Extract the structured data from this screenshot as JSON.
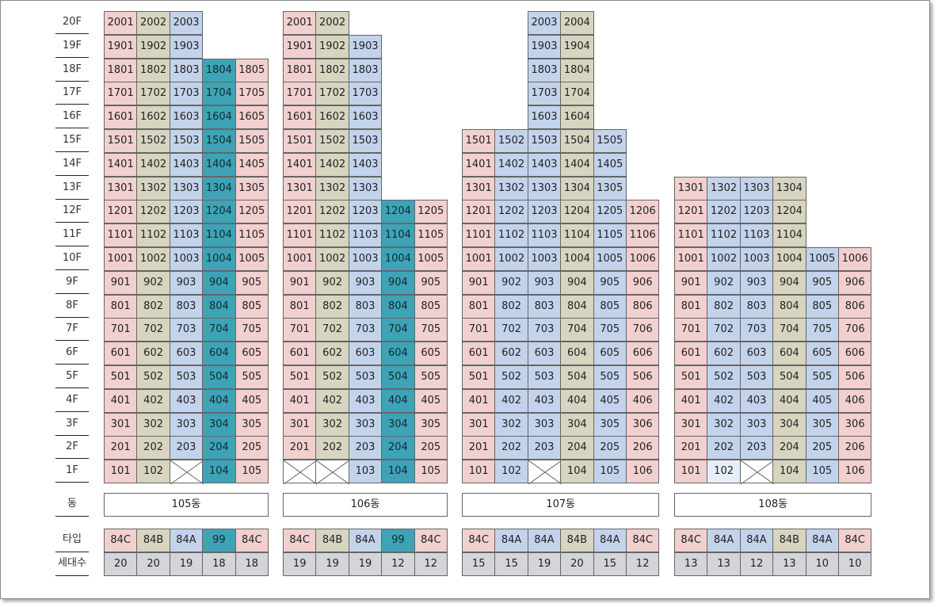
{
  "floor_labels": [
    "20F",
    "19F",
    "18F",
    "17F",
    "16F",
    "15F",
    "14F",
    "13F",
    "12F",
    "11F",
    "10F",
    "9F",
    "8F",
    "7F",
    "6F",
    "5F",
    "4F",
    "3F",
    "2F",
    "1F"
  ],
  "row_labels": {
    "dong": "동",
    "type": "타입",
    "households": "세대수"
  },
  "colors": {
    "84C": "#f2d0d0",
    "84B": "#d7d5c0",
    "84A": "#c4d3ec",
    "99": "#3ea3b6"
  },
  "buildings": [
    {
      "name": "105동",
      "columns": [
        {
          "type": "84C",
          "households": "20",
          "top_floor": 20,
          "empty_floors": []
        },
        {
          "type": "84B",
          "households": "20",
          "top_floor": 20,
          "empty_floors": []
        },
        {
          "type": "84A",
          "households": "19",
          "top_floor": 20,
          "empty_floors": [
            1
          ]
        },
        {
          "type": "99",
          "households": "18",
          "top_floor": 18,
          "empty_floors": []
        },
        {
          "type": "84C",
          "households": "18",
          "top_floor": 18,
          "empty_floors": []
        }
      ]
    },
    {
      "name": "106동",
      "columns": [
        {
          "type": "84C",
          "households": "19",
          "top_floor": 20,
          "empty_floors": [
            1
          ]
        },
        {
          "type": "84B",
          "households": "19",
          "top_floor": 20,
          "empty_floors": [
            1
          ]
        },
        {
          "type": "84A",
          "households": "19",
          "top_floor": 19,
          "empty_floors": []
        },
        {
          "type": "99",
          "households": "12",
          "top_floor": 12,
          "empty_floors": []
        },
        {
          "type": "84C",
          "households": "12",
          "top_floor": 12,
          "empty_floors": []
        }
      ]
    },
    {
      "name": "107동",
      "columns": [
        {
          "type": "84C",
          "households": "15",
          "top_floor": 15,
          "empty_floors": []
        },
        {
          "type": "84A",
          "households": "15",
          "top_floor": 15,
          "empty_floors": []
        },
        {
          "type": "84A",
          "households": "19",
          "top_floor": 20,
          "empty_floors": [
            1
          ]
        },
        {
          "type": "84B",
          "households": "20",
          "top_floor": 20,
          "empty_floors": []
        },
        {
          "type": "84A",
          "households": "15",
          "top_floor": 15,
          "empty_floors": []
        },
        {
          "type": "84C",
          "households": "12",
          "top_floor": 12,
          "empty_floors": []
        }
      ]
    },
    {
      "name": "108동",
      "columns": [
        {
          "type": "84C",
          "households": "13",
          "top_floor": 13,
          "empty_floors": []
        },
        {
          "type": "84A",
          "households": "13",
          "top_floor": 13,
          "empty_floors": [],
          "light_floors": [
            1
          ]
        },
        {
          "type": "84A",
          "households": "12",
          "top_floor": 13,
          "empty_floors": [
            1
          ]
        },
        {
          "type": "84B",
          "households": "13",
          "top_floor": 13,
          "empty_floors": []
        },
        {
          "type": "84A",
          "households": "10",
          "top_floor": 10,
          "empty_floors": []
        },
        {
          "type": "84C",
          "households": "10",
          "top_floor": 10,
          "empty_floors": []
        }
      ]
    }
  ]
}
